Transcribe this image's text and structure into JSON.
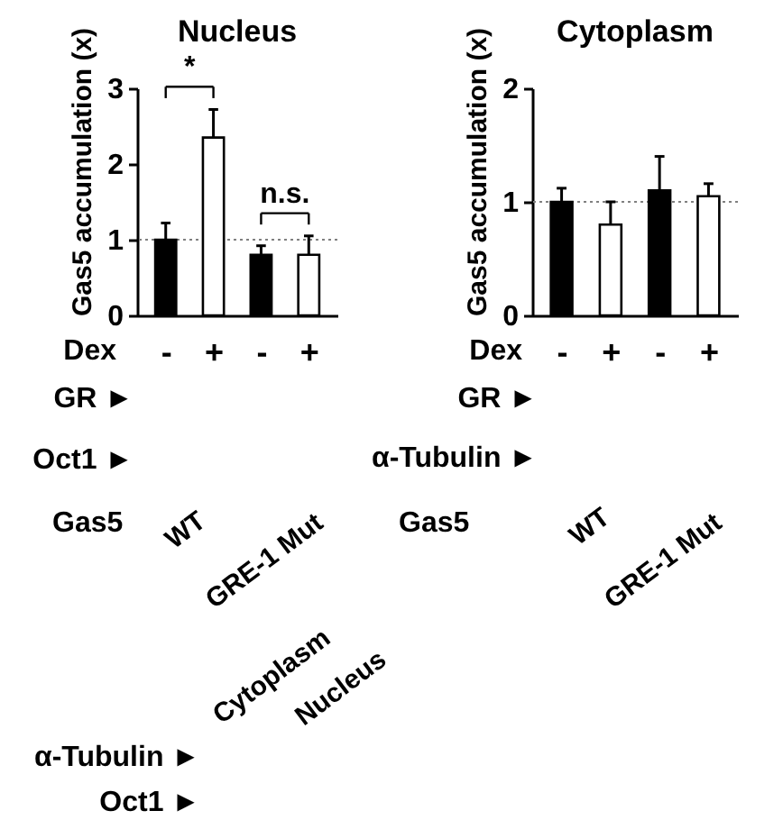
{
  "chart_data": [
    {
      "type": "bar",
      "title": "Nucleus",
      "xlabel": "Dex",
      "ylabel": "Gas5 accumulation (x)",
      "categories": [
        "-",
        "+",
        "-",
        "+"
      ],
      "values": [
        1.0,
        2.35,
        0.8,
        0.8
      ],
      "colors": [
        "#000000",
        "#ffffff",
        "#000000",
        "#ffffff"
      ],
      "errors": [
        [
          1.0,
          1.22
        ],
        [
          2.35,
          2.72
        ],
        [
          0.8,
          0.92
        ],
        [
          0.8,
          1.05
        ]
      ],
      "ylim": [
        0,
        3
      ],
      "yticks": [
        0,
        1,
        2,
        3
      ],
      "ref_lines": [
        {
          "axis": "y",
          "value": 1,
          "line_style": "dotted",
          "color": "#808080"
        }
      ],
      "annotations": [
        "*",
        "n.s.",
        "GR ►",
        "Oct1 ►",
        "Gas5",
        "WT",
        "GRE-1 Mut"
      ]
    },
    {
      "type": "bar",
      "title": "Cytoplasm",
      "xlabel": "Dex",
      "ylabel": "Gas5 accumulation (x)",
      "categories": [
        "-",
        "+",
        "-",
        "+"
      ],
      "values": [
        1.0,
        0.8,
        1.1,
        1.05
      ],
      "colors": [
        "#000000",
        "#ffffff",
        "#000000",
        "#ffffff"
      ],
      "errors": [
        [
          1.0,
          1.12
        ],
        [
          0.8,
          1.0
        ],
        [
          1.1,
          1.4
        ],
        [
          1.05,
          1.16
        ]
      ],
      "ylim": [
        0,
        2
      ],
      "yticks": [
        0,
        1,
        2
      ],
      "ref_lines": [
        {
          "axis": "y",
          "value": 1,
          "line_style": "dotted",
          "color": "#808080"
        }
      ],
      "annotations": [
        "GR ►",
        "α-Tubulin ►",
        "Gas5",
        "WT",
        "GRE-1 Mut"
      ]
    },
    {
      "type": "other",
      "annotations": [
        "Cytoplasm",
        "Nucleus",
        "α-Tubulin ►",
        "Oct1 ►"
      ]
    }
  ]
}
